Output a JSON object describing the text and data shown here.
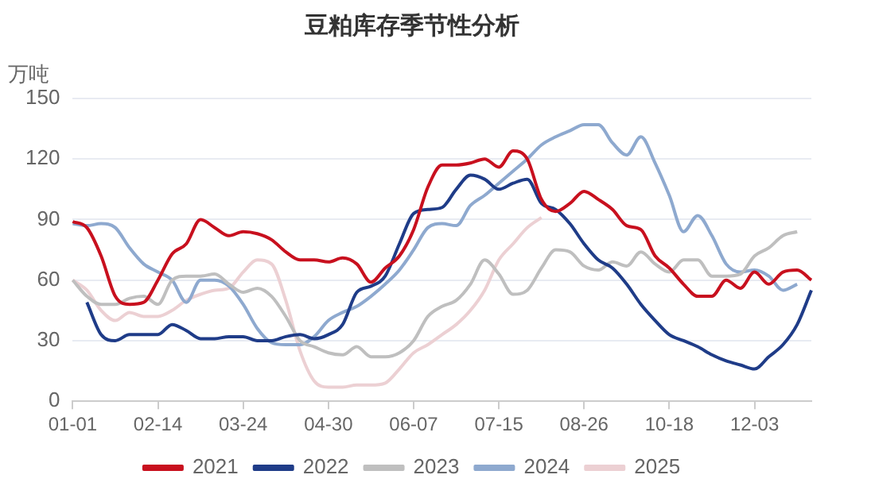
{
  "chart_data": {
    "type": "line",
    "title": "豆粕库存季节性分析",
    "ylabel": "万吨",
    "categories": [
      "01-01",
      null,
      null,
      null,
      null,
      null,
      "02-14",
      null,
      null,
      null,
      null,
      null,
      "03-24",
      null,
      null,
      null,
      null,
      null,
      "04-30",
      null,
      null,
      null,
      null,
      null,
      "06-07",
      null,
      null,
      null,
      null,
      null,
      "07-15",
      null,
      null,
      null,
      null,
      null,
      "08-26",
      null,
      null,
      null,
      null,
      null,
      "10-18",
      null,
      null,
      null,
      null,
      null,
      "12-03",
      null,
      null,
      null,
      null
    ],
    "ylim": [
      0,
      150
    ],
    "yticks": [
      0,
      30,
      60,
      90,
      120,
      150
    ],
    "grid": "y",
    "legend": "bottom",
    "marker": "none",
    "line_style": "solid",
    "series": [
      {
        "name": "2021",
        "color": "#c8101e",
        "values": [
          89,
          86,
          72,
          52,
          48,
          49,
          60,
          73,
          78,
          90,
          86,
          82,
          84,
          83,
          80,
          74,
          70,
          70,
          69,
          71,
          68,
          59,
          66,
          72,
          85,
          106,
          117,
          117,
          118,
          120,
          116,
          124,
          120,
          100,
          94,
          98,
          104,
          100,
          95,
          87,
          85,
          72,
          66,
          58,
          52,
          52,
          60,
          56,
          64,
          58,
          64,
          65,
          60
        ]
      },
      {
        "name": "2022",
        "color": "#1f3c88",
        "values": [
          null,
          49,
          33,
          30,
          33,
          33,
          33,
          38,
          35,
          31,
          31,
          32,
          32,
          30,
          30,
          32,
          33,
          31,
          33,
          38,
          54,
          57,
          62,
          78,
          93,
          95,
          96,
          105,
          112,
          110,
          105,
          108,
          110,
          98,
          95,
          88,
          78,
          70,
          66,
          58,
          48,
          40,
          33,
          30,
          27,
          23,
          20,
          18,
          16,
          22,
          28,
          38,
          55
        ]
      },
      {
        "name": "2023",
        "color": "#bfbfbf",
        "values": [
          60,
          52,
          48,
          48,
          51,
          52,
          48,
          60,
          62,
          62,
          63,
          58,
          54,
          56,
          52,
          42,
          30,
          27,
          24,
          23,
          27,
          22,
          22,
          24,
          30,
          42,
          47,
          50,
          58,
          70,
          63,
          53,
          55,
          66,
          75,
          74,
          67,
          65,
          69,
          67,
          74,
          68,
          64,
          70,
          70,
          62,
          62,
          63,
          72,
          76,
          82,
          84,
          null
        ]
      },
      {
        "name": "2024",
        "color": "#8ea9cf",
        "values": [
          88,
          87,
          88,
          86,
          76,
          68,
          64,
          60,
          49,
          60,
          60,
          57,
          48,
          36,
          29,
          28,
          28,
          32,
          40,
          44,
          47,
          52,
          58,
          65,
          75,
          86,
          88,
          87,
          97,
          102,
          108,
          114,
          120,
          127,
          131,
          134,
          137,
          137,
          128,
          122,
          131,
          118,
          102,
          84,
          92,
          82,
          68,
          64,
          65,
          62,
          55,
          58,
          null
        ]
      },
      {
        "name": "2025",
        "color": "#ecd0d3",
        "values": [
          60,
          55,
          45,
          40,
          44,
          42,
          42,
          45,
          50,
          53,
          55,
          56,
          64,
          70,
          68,
          50,
          25,
          10,
          7,
          7,
          8,
          8,
          9,
          16,
          24,
          28,
          33,
          38,
          45,
          55,
          70,
          78,
          86,
          91,
          null,
          null,
          null,
          null,
          null,
          null,
          null,
          null,
          null,
          null,
          null,
          null,
          null,
          null,
          null,
          null,
          null,
          null,
          null
        ]
      }
    ]
  }
}
